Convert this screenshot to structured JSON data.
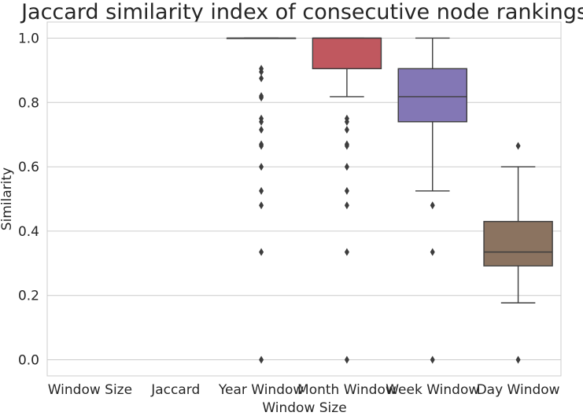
{
  "chart_data": {
    "type": "box",
    "title": "Jaccard similarity index of consecutive node rankings",
    "xlabel": "Window Size",
    "ylabel": "Similarity",
    "ylim": [
      -0.05,
      1.05
    ],
    "yticks": [
      "0.0",
      "0.2",
      "0.4",
      "0.6",
      "0.8",
      "1.0"
    ],
    "grid": true,
    "categories": [
      "Window Size",
      "Jaccard",
      "Year Window",
      "Month Window",
      "Week Window",
      "Day Window"
    ],
    "boxes": [
      null,
      null,
      {
        "color": "#3a6fb5",
        "whislo": 1.0,
        "q1": 1.0,
        "med": 1.0,
        "q3": 1.0,
        "whishi": 1.0,
        "fliers": [
          0.905,
          0.895,
          0.875,
          0.82,
          0.815,
          0.75,
          0.74,
          0.715,
          0.67,
          0.665,
          0.6,
          0.525,
          0.48,
          0.335,
          0.0
        ]
      },
      {
        "color": "#c0585f",
        "whislo": 0.818,
        "q1": 0.905,
        "med": 1.0,
        "q3": 1.0,
        "whishi": 1.0,
        "fliers": [
          0.75,
          0.74,
          0.715,
          0.67,
          0.665,
          0.6,
          0.525,
          0.48,
          0.335,
          0.0
        ]
      },
      {
        "color": "#8377b5",
        "whislo": 0.525,
        "q1": 0.74,
        "med": 0.818,
        "q3": 0.905,
        "whishi": 1.0,
        "fliers": [
          0.48,
          0.335,
          0.0
        ]
      },
      {
        "color": "#8b7360",
        "whislo": 0.177,
        "q1": 0.292,
        "med": 0.335,
        "q3": 0.43,
        "whishi": 0.6,
        "fliers": [
          0.665,
          0.0
        ]
      }
    ]
  }
}
